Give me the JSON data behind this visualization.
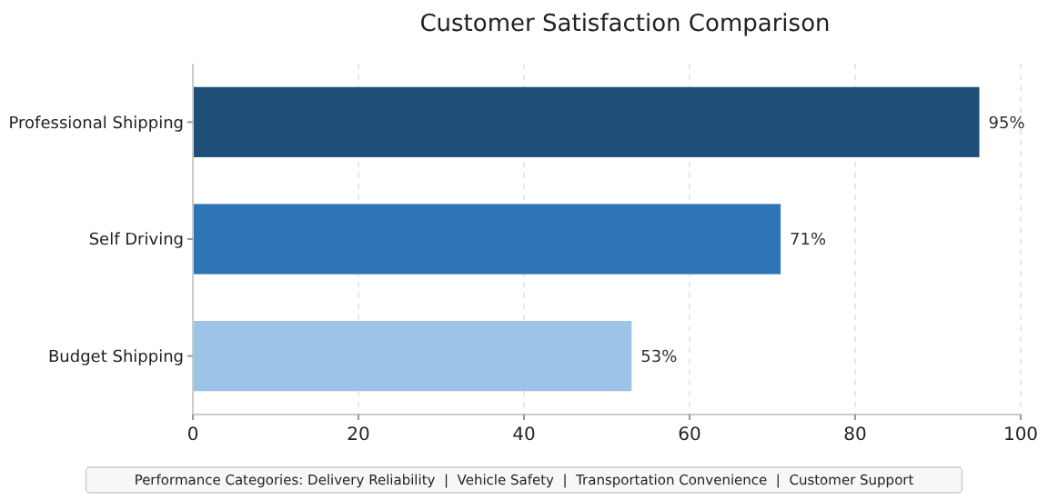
{
  "chart_data": {
    "type": "bar",
    "orientation": "horizontal",
    "title": "Customer Satisfaction Comparison",
    "categories": [
      "Professional Shipping",
      "Self Driving",
      "Budget Shipping"
    ],
    "values": [
      95,
      71,
      53
    ],
    "colors": [
      "#1f4e79",
      "#2e75b6",
      "#9dc3e6"
    ],
    "value_labels": [
      "95%",
      "71%",
      "53%"
    ],
    "xlim": [
      0,
      100
    ],
    "xticks": [
      0,
      20,
      40,
      60,
      80,
      100
    ],
    "grid": "x",
    "annotations": [
      "Performance Categories: Delivery Reliability  |  Vehicle Safety  |  Transportation Convenience  |  Customer Support"
    ]
  }
}
